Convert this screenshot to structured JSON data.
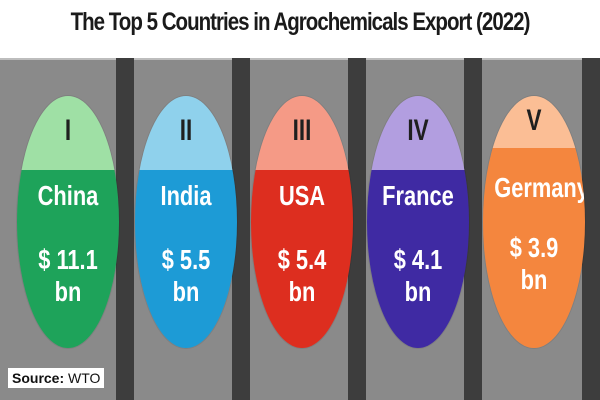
{
  "title": "The Top 5 Countries in Agrochemicals Export (2022)",
  "source_label": "Source:",
  "source_value": "WTO",
  "chart_data": {
    "type": "table",
    "title": "The Top 5 Countries in Agrochemicals Export (2022)",
    "unit": "$ bn",
    "items": [
      {
        "rank": "I",
        "country": "China",
        "value": 11.1,
        "label": "$ 11.1 bn",
        "top_color": "#9fe0a5",
        "bottom_color": "#1ea35a"
      },
      {
        "rank": "II",
        "country": "India",
        "value": 5.5,
        "label": "$ 5.5 bn",
        "top_color": "#8fd1ec",
        "bottom_color": "#1d9bd6"
      },
      {
        "rank": "III",
        "country": "USA",
        "value": 5.4,
        "label": "$ 5.4 bn",
        "top_color": "#f59a86",
        "bottom_color": "#dd2e1f"
      },
      {
        "rank": "IV",
        "country": "France",
        "value": 4.1,
        "label": "$ 4.1 bn",
        "top_color": "#b29ee0",
        "bottom_color": "#3f2aa3"
      },
      {
        "rank": "V",
        "country": "Germany",
        "value": 3.9,
        "label": "$ 3.9 bn",
        "top_color": "#fbbe95",
        "bottom_color": "#f4863e"
      }
    ]
  }
}
